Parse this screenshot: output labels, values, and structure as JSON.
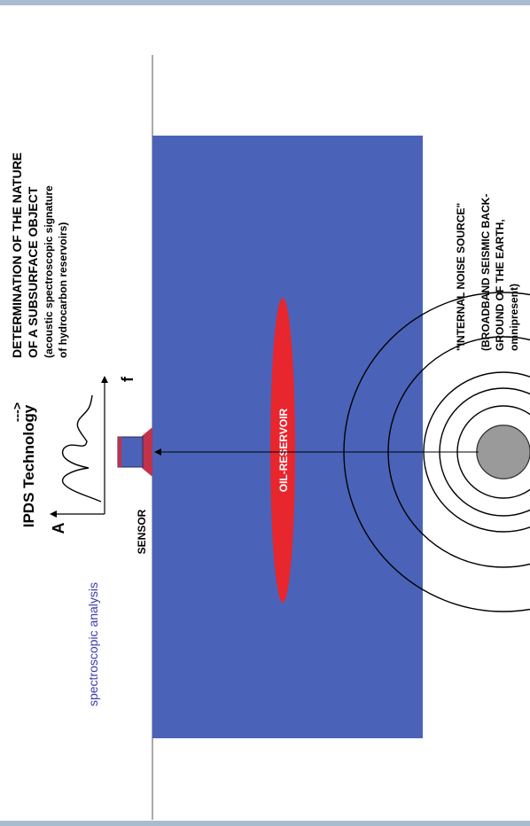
{
  "title": "IPDS Technology",
  "determination": {
    "arrow": "--->",
    "line1": "DETERMINATION OF THE NATURE",
    "line2": "OF A SUBSURFACE OBJECT",
    "line3": "(acoustic spectroscopic signature",
    "line4": "of hydrocarbon reservoirs)"
  },
  "noise": {
    "line1": "\"INTERNAL NOISE SOURCE\"",
    "line2": "(BROADBAND SEISMIC BACK-",
    "line3": "GROUND OF THE EARTH,",
    "line4": "omnipresent)"
  },
  "spectroscopic_label": "spectroscopic analysis",
  "sensor_label": "SENSOR",
  "axis_a": "A",
  "axis_f": "f",
  "reservoir_label": "OIL-RESERVOIR",
  "colors": {
    "earth": "#4a63b8",
    "reservoir": "#e8262e",
    "sensor_body": "#4a63b8",
    "sensor_base": "#c2314a",
    "noise_source": "#9a9a9a",
    "frame": "#a9bccd"
  }
}
